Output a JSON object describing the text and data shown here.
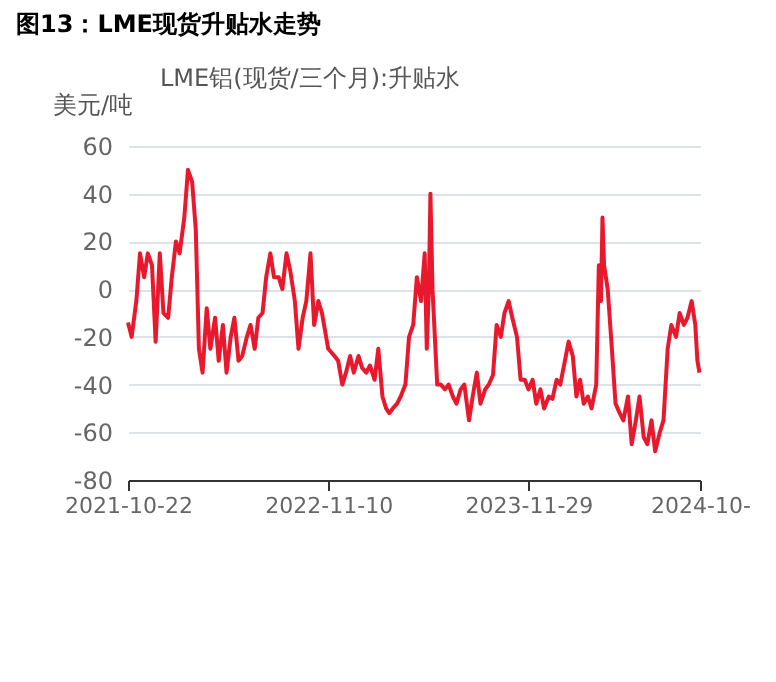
{
  "chart_data": {
    "type": "line",
    "title": "图13：LME现货升贴水走势",
    "ylabel": "美元/吨",
    "legend": "top",
    "grid": "y",
    "marker": "none",
    "line_style": "solid",
    "xlim": [
      "2021-10-22",
      "2024-10-23"
    ],
    "xticks": [
      {
        "value": "2021-10-22",
        "label": "2021-10-22"
      },
      {
        "value": "2022-11-10",
        "label": "2022-11-10"
      },
      {
        "value": "2023-11-29",
        "label": "2023-11-29"
      },
      {
        "value": "2024-10-23",
        "label": "2024-10-"
      }
    ],
    "ylim": [
      -80,
      60
    ],
    "yticks": [
      -80,
      -60,
      -40,
      -20,
      0,
      20,
      40,
      60
    ],
    "x": [
      "2021-10-22",
      "2021-10-29",
      "2021-11-07",
      "2021-11-14",
      "2021-11-22",
      "2021-11-29",
      "2021-12-07",
      "2021-12-14",
      "2021-12-22",
      "2021-12-29",
      "2022-01-07",
      "2022-01-14",
      "2022-01-22",
      "2022-01-29",
      "2022-02-07",
      "2022-02-14",
      "2022-02-22",
      "2022-03-01",
      "2022-03-07",
      "2022-03-14",
      "2022-03-22",
      "2022-03-29",
      "2022-04-07",
      "2022-04-14",
      "2022-04-22",
      "2022-04-29",
      "2022-05-07",
      "2022-05-14",
      "2022-05-22",
      "2022-05-29",
      "2022-06-07",
      "2022-06-14",
      "2022-06-22",
      "2022-06-29",
      "2022-07-07",
      "2022-07-14",
      "2022-07-22",
      "2022-07-29",
      "2022-08-07",
      "2022-08-14",
      "2022-08-22",
      "2022-08-29",
      "2022-09-07",
      "2022-09-14",
      "2022-09-22",
      "2022-09-29",
      "2022-10-07",
      "2022-10-14",
      "2022-10-22",
      "2022-10-29",
      "2022-11-10",
      "2022-11-22",
      "2022-11-29",
      "2022-12-07",
      "2022-12-14",
      "2022-12-22",
      "2022-12-29",
      "2023-01-07",
      "2023-01-14",
      "2023-01-22",
      "2023-01-29",
      "2023-02-07",
      "2023-02-14",
      "2023-02-22",
      "2023-03-01",
      "2023-03-07",
      "2023-03-14",
      "2023-03-22",
      "2023-03-29",
      "2023-04-07",
      "2023-04-14",
      "2023-04-22",
      "2023-04-29",
      "2023-05-07",
      "2023-05-14",
      "2023-05-18",
      "2023-05-22",
      "2023-05-25",
      "2023-05-29",
      "2023-06-07",
      "2023-06-14",
      "2023-06-22",
      "2023-06-29",
      "2023-07-07",
      "2023-07-14",
      "2023-07-22",
      "2023-07-29",
      "2023-08-07",
      "2023-08-14",
      "2023-08-22",
      "2023-08-29",
      "2023-09-07",
      "2023-09-14",
      "2023-09-22",
      "2023-09-29",
      "2023-10-07",
      "2023-10-14",
      "2023-10-22",
      "2023-10-29",
      "2023-11-07",
      "2023-11-14",
      "2023-11-22",
      "2023-11-29",
      "2023-12-07",
      "2023-12-14",
      "2023-12-22",
      "2023-12-29",
      "2024-01-07",
      "2024-01-14",
      "2024-01-22",
      "2024-01-29",
      "2024-02-07",
      "2024-02-14",
      "2024-02-22",
      "2024-02-29",
      "2024-03-07",
      "2024-03-14",
      "2024-03-22",
      "2024-03-29",
      "2024-04-07",
      "2024-04-12",
      "2024-04-16",
      "2024-04-19",
      "2024-04-22",
      "2024-04-29",
      "2024-05-07",
      "2024-05-14",
      "2024-05-22",
      "2024-05-29",
      "2024-06-07",
      "2024-06-14",
      "2024-06-22",
      "2024-06-29",
      "2024-07-07",
      "2024-07-14",
      "2024-07-22",
      "2024-07-29",
      "2024-08-07",
      "2024-08-14",
      "2024-08-22",
      "2024-08-29",
      "2024-09-07",
      "2024-09-14",
      "2024-09-22",
      "2024-09-29",
      "2024-10-07",
      "2024-10-14",
      "2024-10-18",
      "2024-10-22"
    ],
    "series": [
      {
        "name": "LME铝(现货/三个月):升贴水",
        "color": "#e8192c",
        "values": [
          -14,
          -20,
          -5,
          15,
          5,
          15,
          10,
          -22,
          15,
          -10,
          -12,
          5,
          20,
          15,
          30,
          50,
          45,
          25,
          -25,
          -35,
          -8,
          -25,
          -12,
          -30,
          -15,
          -35,
          -20,
          -12,
          -30,
          -28,
          -20,
          -15,
          -25,
          -12,
          -10,
          5,
          15,
          5,
          5,
          0,
          15,
          8,
          -5,
          -25,
          -12,
          -5,
          15,
          -15,
          -5,
          -10,
          -25,
          -28,
          -30,
          -40,
          -35,
          -28,
          -35,
          -28,
          -33,
          -35,
          -32,
          -38,
          -25,
          -45,
          -50,
          -52,
          -50,
          -48,
          -45,
          -40,
          -20,
          -15,
          5,
          -5,
          15,
          -25,
          0,
          40,
          0,
          -40,
          -40,
          -42,
          -40,
          -45,
          -48,
          -42,
          -40,
          -55,
          -45,
          -35,
          -48,
          -42,
          -40,
          -36,
          -15,
          -20,
          -10,
          -5,
          -12,
          -20,
          -38,
          -38,
          -42,
          -38,
          -48,
          -42,
          -50,
          -45,
          -46,
          -38,
          -40,
          -30,
          -22,
          -28,
          -45,
          -38,
          -48,
          -45,
          -50,
          -40,
          10,
          -5,
          30,
          10,
          0,
          -25,
          -48,
          -52,
          -55,
          -45,
          -65,
          -55,
          -45,
          -62,
          -65,
          -55,
          -68,
          -60,
          -55,
          -25,
          -15,
          -20,
          -10,
          -15,
          -12,
          -5,
          -15,
          -30,
          -35
        ]
      }
    ]
  }
}
